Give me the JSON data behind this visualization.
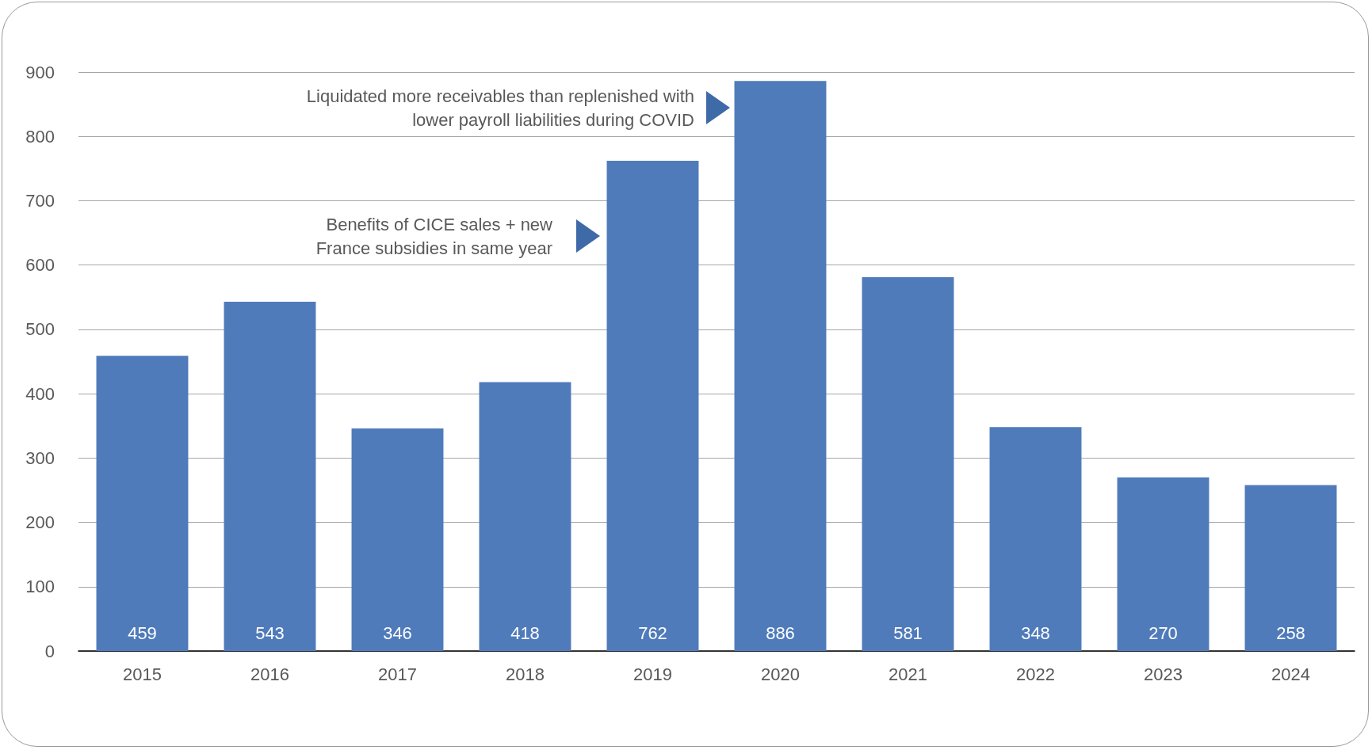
{
  "chart_data": {
    "type": "bar",
    "categories": [
      "2015",
      "2016",
      "2017",
      "2018",
      "2019",
      "2020",
      "2021",
      "2022",
      "2023",
      "2024"
    ],
    "values": [
      459,
      543,
      346,
      418,
      762,
      886,
      581,
      348,
      270,
      258
    ],
    "color": "#4f7bba",
    "ylim": [
      0,
      900
    ],
    "yticks": [
      0,
      100,
      200,
      300,
      400,
      500,
      600,
      700,
      800,
      900
    ],
    "grid": "y",
    "data_labels": true,
    "annotations": [
      "Liquidated more receivables than replenished with\nlower payroll liabilities during COVID",
      "Benefits of CICE sales + new\nFrance subsidies in same year"
    ]
  }
}
